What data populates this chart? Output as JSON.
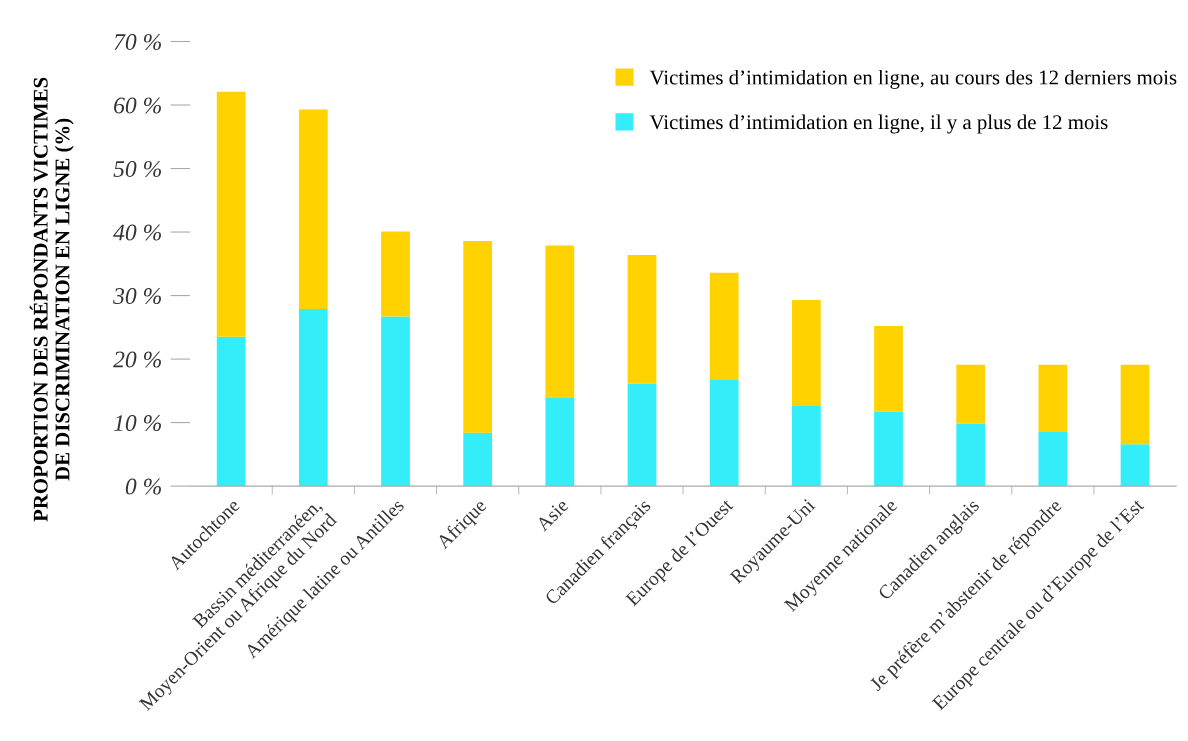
{
  "chart_data": {
    "type": "bar",
    "stacked": true,
    "ylabel": "PROPORTION DES RÉPONDANTS VICTIMES\nDE DISCRIMINATION EN LIGNE (%)",
    "categories": [
      "Autochtone",
      "Bassin méditerranéen,\nMoyen-Orient ou Afrique du Nord",
      "Amérique latine ou Antilles",
      "Afrique",
      "Asie",
      "Canadien français",
      "Europe de l’Ouest",
      "Royaume-Uni",
      "Moyenne nationale",
      "Canadien anglais",
      "Je préfère m’abstenir de répondre",
      "Europe centrale ou d’Europe de l’Est"
    ],
    "series": [
      {
        "name": "Victimes d’intimidation en ligne, il y a plus de 12 mois",
        "color": "#33eef8",
        "values": [
          23.5,
          27.9,
          26.7,
          8.4,
          14.0,
          16.1,
          16.7,
          12.6,
          11.7,
          9.8,
          8.5,
          6.6
        ]
      },
      {
        "name": "Victimes d’intimidation en ligne, au cours des 12 derniers mois",
        "color": "#ffd200",
        "values": [
          38.6,
          31.4,
          13.4,
          30.2,
          23.9,
          20.3,
          16.9,
          16.7,
          13.5,
          9.3,
          10.6,
          12.5
        ]
      }
    ],
    "ylim": [
      0,
      70
    ],
    "yticks": [
      {
        "value": 0,
        "label": "0 %"
      },
      {
        "value": 10,
        "label": "10 %"
      },
      {
        "value": 20,
        "label": "20 %"
      },
      {
        "value": 30,
        "label": "30 %"
      },
      {
        "value": 40,
        "label": "40 %"
      },
      {
        "value": 50,
        "label": "50 %"
      },
      {
        "value": 60,
        "label": "60 %"
      },
      {
        "value": 70,
        "label": "70 %"
      }
    ],
    "legend": "top right",
    "grid": false
  }
}
